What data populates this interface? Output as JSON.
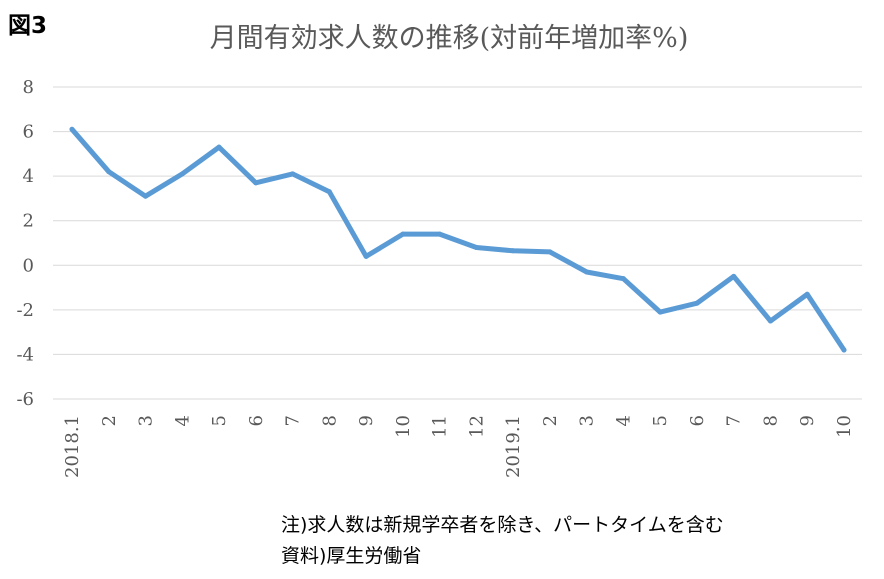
{
  "figure_label": "図3",
  "chart_data": {
    "type": "line",
    "title": "月間有効求人数の推移(対前年増加率%)",
    "xlabel": "",
    "ylabel": "",
    "ylim": [
      -6,
      8
    ],
    "yticks": [
      8,
      6,
      4,
      2,
      0,
      -2,
      -4,
      -6
    ],
    "grid": true,
    "categories": [
      "2018.1",
      "2",
      "3",
      "4",
      "5",
      "6",
      "7",
      "8",
      "9",
      "10",
      "11",
      "12",
      "2019.1",
      "2",
      "3",
      "4",
      "5",
      "6",
      "7",
      "8",
      "9",
      "10"
    ],
    "series": [
      {
        "values": [
          6.1,
          4.2,
          3.1,
          4.1,
          5.3,
          3.7,
          4.1,
          3.3,
          0.4,
          1.4,
          1.4,
          0.8,
          0.65,
          0.6,
          -0.3,
          -0.6,
          -2.1,
          -1.7,
          -0.5,
          -2.5,
          -1.3,
          -3.8
        ],
        "color": "#5b9bd5"
      }
    ]
  },
  "notes": {
    "line1": "注)求人数は新規学卒者を除き、パートタイムを含む",
    "line2": "資料)厚生労働省"
  }
}
